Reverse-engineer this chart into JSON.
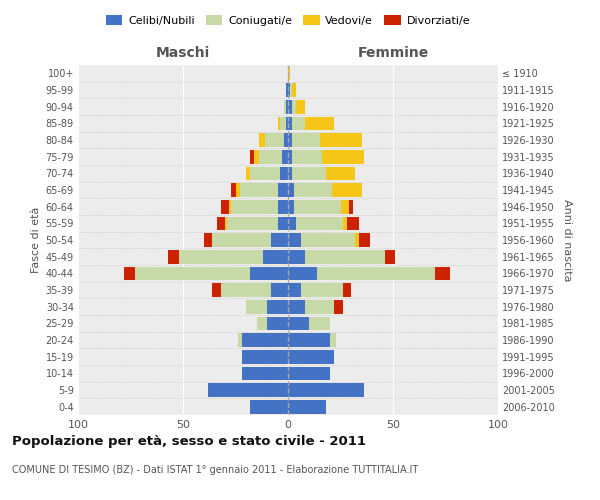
{
  "age_groups": [
    "0-4",
    "5-9",
    "10-14",
    "15-19",
    "20-24",
    "25-29",
    "30-34",
    "35-39",
    "40-44",
    "45-49",
    "50-54",
    "55-59",
    "60-64",
    "65-69",
    "70-74",
    "75-79",
    "80-84",
    "85-89",
    "90-94",
    "95-99",
    "100+"
  ],
  "birth_years": [
    "2006-2010",
    "2001-2005",
    "1996-2000",
    "1991-1995",
    "1986-1990",
    "1981-1985",
    "1976-1980",
    "1971-1975",
    "1966-1970",
    "1961-1965",
    "1956-1960",
    "1951-1955",
    "1946-1950",
    "1941-1945",
    "1936-1940",
    "1931-1935",
    "1926-1930",
    "1921-1925",
    "1916-1920",
    "1911-1915",
    "≤ 1910"
  ],
  "colors": {
    "celibi": "#4472C4",
    "coniugati": "#c8d9a8",
    "vedovi": "#f5c518",
    "divorziati": "#cc2200"
  },
  "maschi": {
    "celibi": [
      18,
      38,
      22,
      22,
      22,
      10,
      10,
      8,
      18,
      12,
      8,
      5,
      5,
      5,
      4,
      3,
      2,
      1,
      1,
      1,
      0
    ],
    "coniugati": [
      0,
      0,
      0,
      0,
      2,
      5,
      10,
      24,
      55,
      40,
      28,
      24,
      22,
      18,
      14,
      11,
      9,
      3,
      1,
      0,
      0
    ],
    "vedovi": [
      0,
      0,
      0,
      0,
      0,
      0,
      0,
      0,
      0,
      0,
      0,
      1,
      1,
      2,
      2,
      2,
      3,
      1,
      0,
      0,
      0
    ],
    "divorziati": [
      0,
      0,
      0,
      0,
      0,
      0,
      0,
      4,
      5,
      5,
      4,
      4,
      4,
      2,
      0,
      2,
      0,
      0,
      0,
      0,
      0
    ]
  },
  "femmine": {
    "celibi": [
      18,
      36,
      20,
      22,
      20,
      10,
      8,
      6,
      14,
      8,
      6,
      4,
      3,
      3,
      2,
      2,
      2,
      2,
      2,
      1,
      0
    ],
    "coniugati": [
      0,
      0,
      0,
      0,
      3,
      10,
      14,
      20,
      56,
      38,
      26,
      22,
      22,
      18,
      16,
      14,
      13,
      6,
      2,
      1,
      0
    ],
    "vedovi": [
      0,
      0,
      0,
      0,
      0,
      0,
      0,
      0,
      0,
      0,
      2,
      2,
      4,
      14,
      14,
      20,
      20,
      14,
      4,
      2,
      1
    ],
    "divorziati": [
      0,
      0,
      0,
      0,
      0,
      0,
      4,
      4,
      7,
      5,
      5,
      6,
      2,
      0,
      0,
      0,
      0,
      0,
      0,
      0,
      0
    ]
  },
  "xlim": 100,
  "title": "Popolazione per età, sesso e stato civile - 2011",
  "subtitle": "COMUNE DI TESIMO (BZ) - Dati ISTAT 1° gennaio 2011 - Elaborazione TUTTITALIA.IT",
  "ylabel_left": "Fasce di età",
  "ylabel_right": "Anni di nascita",
  "xlabel_left": "Maschi",
  "xlabel_right": "Femmine",
  "legend_labels": [
    "Celibi/Nubili",
    "Coniugati/e",
    "Vedovi/e",
    "Divorziati/e"
  ],
  "bg_color": "#ffffff",
  "plot_bg": "#ececec",
  "grid_color": "#ffffff"
}
